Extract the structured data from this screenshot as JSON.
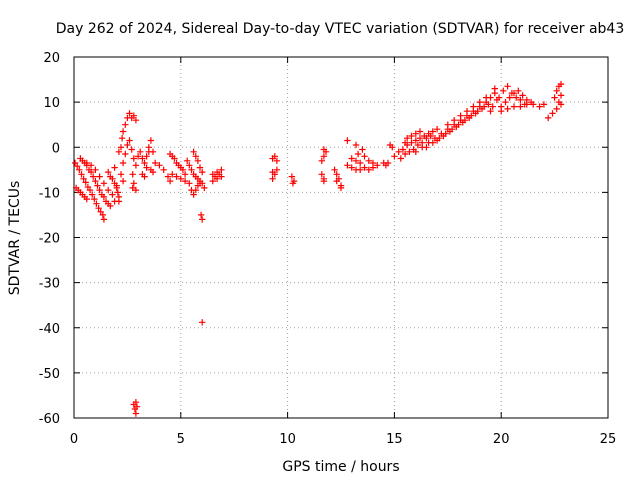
{
  "chart_data": {
    "type": "scatter",
    "title": "Day 262 of 2024, Sidereal Day-to-day VTEC variation (SDTVAR) for receiver ab43",
    "xlabel": "GPS time / hours",
    "ylabel": "SDTVAR / TECUs",
    "xlim": [
      0,
      25
    ],
    "ylim": [
      -60,
      20
    ],
    "xticks": [
      "0",
      "5",
      "10",
      "15",
      "20",
      "25"
    ],
    "yticks": [
      "20",
      "10",
      "0",
      "-10",
      "-20",
      "-30",
      "-40",
      "-50",
      "-60"
    ],
    "grid": true,
    "marker": "+",
    "color": "#ff0000",
    "series": [
      {
        "name": "SDTVAR",
        "points": [
          [
            0.05,
            -3.5
          ],
          [
            0.15,
            -4.2
          ],
          [
            0.25,
            -5.0
          ],
          [
            0.35,
            -6.0
          ],
          [
            0.45,
            -7.0
          ],
          [
            0.55,
            -7.8
          ],
          [
            0.65,
            -8.8
          ],
          [
            0.75,
            -9.5
          ],
          [
            0.85,
            -10.5
          ],
          [
            0.95,
            -11.5
          ],
          [
            1.05,
            -12.5
          ],
          [
            1.15,
            -13.5
          ],
          [
            1.25,
            -14.3
          ],
          [
            1.35,
            -15.0
          ],
          [
            1.4,
            -16.0
          ],
          [
            0.1,
            -9.0
          ],
          [
            0.2,
            -9.5
          ],
          [
            0.3,
            -10.0
          ],
          [
            0.4,
            -10.5
          ],
          [
            0.5,
            -11.0
          ],
          [
            0.6,
            -11.5
          ],
          [
            0.3,
            -2.5
          ],
          [
            0.4,
            -3.0
          ],
          [
            0.5,
            -3.5
          ],
          [
            0.6,
            -4.0
          ],
          [
            0.7,
            -5.0
          ],
          [
            0.8,
            -5.5
          ],
          [
            0.9,
            -6.5
          ],
          [
            1.0,
            -7.5
          ],
          [
            1.1,
            -8.5
          ],
          [
            1.2,
            -9.5
          ],
          [
            1.3,
            -10.5
          ],
          [
            1.4,
            -11.0
          ],
          [
            1.5,
            -12.0
          ],
          [
            1.6,
            -12.5
          ],
          [
            1.7,
            -13.0
          ],
          [
            0.6,
            -3.5
          ],
          [
            0.8,
            -4.0
          ],
          [
            1.0,
            -5.0
          ],
          [
            1.2,
            -6.5
          ],
          [
            1.4,
            -8.0
          ],
          [
            1.6,
            -9.5
          ],
          [
            1.8,
            -10.5
          ],
          [
            1.9,
            -12.0
          ],
          [
            1.6,
            -5.5
          ],
          [
            1.7,
            -6.5
          ],
          [
            1.8,
            -7.0
          ],
          [
            1.9,
            -8.0
          ],
          [
            2.0,
            -9.0
          ],
          [
            2.1,
            -11.0
          ],
          [
            2.1,
            -12.0
          ],
          [
            2.05,
            -10.0
          ],
          [
            2.0,
            -8.5
          ],
          [
            1.9,
            -4.5
          ],
          [
            2.2,
            -6.0
          ],
          [
            2.3,
            -7.5
          ],
          [
            2.1,
            -1.0
          ],
          [
            2.2,
            0.0
          ],
          [
            2.25,
            2.0
          ],
          [
            2.3,
            3.5
          ],
          [
            2.4,
            5.0
          ],
          [
            2.5,
            6.5
          ],
          [
            2.6,
            7.5
          ],
          [
            2.7,
            6.5
          ],
          [
            2.8,
            7.0
          ],
          [
            2.9,
            6.0
          ],
          [
            2.3,
            -3.5
          ],
          [
            2.4,
            -1.5
          ],
          [
            2.5,
            0.5
          ],
          [
            2.6,
            1.5
          ],
          [
            2.7,
            -0.5
          ],
          [
            2.8,
            -2.5
          ],
          [
            2.9,
            -4.0
          ],
          [
            2.75,
            -6.0
          ],
          [
            2.8,
            -8.0
          ],
          [
            2.75,
            -9.0
          ],
          [
            2.9,
            -9.5
          ],
          [
            3.0,
            -2.0
          ],
          [
            3.1,
            -1.0
          ],
          [
            3.2,
            -2.5
          ],
          [
            3.3,
            -3.5
          ],
          [
            3.4,
            -2.0
          ],
          [
            3.5,
            -1.0
          ],
          [
            3.6,
            1.5
          ],
          [
            3.5,
            0.0
          ],
          [
            3.4,
            -4.5
          ],
          [
            3.2,
            -6.0
          ],
          [
            3.3,
            -6.5
          ],
          [
            3.6,
            -5.0
          ],
          [
            3.7,
            -5.5
          ],
          [
            2.8,
            -57.0
          ],
          [
            2.9,
            -56.5
          ],
          [
            2.85,
            -58.0
          ],
          [
            2.95,
            -57.5
          ],
          [
            2.9,
            -59.0
          ],
          [
            3.7,
            -1.0
          ],
          [
            3.8,
            -3.5
          ],
          [
            4.0,
            -4.0
          ],
          [
            4.2,
            -5.0
          ],
          [
            4.4,
            -6.5
          ],
          [
            4.5,
            -7.5
          ],
          [
            4.6,
            -6.0
          ],
          [
            4.5,
            -1.5
          ],
          [
            4.6,
            -2.0
          ],
          [
            4.7,
            -2.5
          ],
          [
            4.8,
            -3.5
          ],
          [
            4.9,
            -4.0
          ],
          [
            5.0,
            -4.5
          ],
          [
            5.1,
            -5.0
          ],
          [
            5.2,
            -6.0
          ],
          [
            4.8,
            -6.5
          ],
          [
            5.0,
            -7.0
          ],
          [
            5.2,
            -7.5
          ],
          [
            5.4,
            -8.0
          ],
          [
            5.5,
            -9.5
          ],
          [
            5.6,
            -10.5
          ],
          [
            5.7,
            -9.5
          ],
          [
            5.8,
            -8.5
          ],
          [
            5.9,
            -8.0
          ],
          [
            5.3,
            -3.0
          ],
          [
            5.4,
            -4.0
          ],
          [
            5.5,
            -5.0
          ],
          [
            5.6,
            -6.0
          ],
          [
            5.7,
            -6.5
          ],
          [
            5.8,
            -7.0
          ],
          [
            5.9,
            -7.5
          ],
          [
            6.0,
            -8.0
          ],
          [
            6.1,
            -9.0
          ],
          [
            5.6,
            -1.0
          ],
          [
            5.7,
            -2.0
          ],
          [
            5.8,
            -3.0
          ],
          [
            5.9,
            -4.5
          ],
          [
            6.0,
            -5.5
          ],
          [
            5.95,
            -15.0
          ],
          [
            6.0,
            -16.0
          ],
          [
            6.0,
            -38.8
          ],
          [
            6.5,
            -6.0
          ],
          [
            6.7,
            -5.5
          ],
          [
            6.9,
            -5.0
          ],
          [
            6.5,
            -7.5
          ],
          [
            6.7,
            -7.0
          ],
          [
            6.9,
            -6.5
          ],
          [
            6.6,
            -6.5
          ],
          [
            6.8,
            -6.0
          ],
          [
            9.3,
            -2.5
          ],
          [
            9.4,
            -2.0
          ],
          [
            9.5,
            -3.0
          ],
          [
            9.3,
            -5.5
          ],
          [
            9.4,
            -6.0
          ],
          [
            9.3,
            -7.0
          ],
          [
            9.5,
            -5.0
          ],
          [
            10.2,
            -6.5
          ],
          [
            10.3,
            -7.5
          ],
          [
            10.25,
            -8.0
          ],
          [
            11.6,
            -3.0
          ],
          [
            11.7,
            -2.0
          ],
          [
            11.8,
            -1.0
          ],
          [
            11.7,
            -0.5
          ],
          [
            11.6,
            -6.0
          ],
          [
            11.7,
            -7.0
          ],
          [
            11.7,
            -7.5
          ],
          [
            12.2,
            -5.0
          ],
          [
            12.3,
            -6.0
          ],
          [
            12.4,
            -7.0
          ],
          [
            12.5,
            -8.5
          ],
          [
            12.5,
            -9.0
          ],
          [
            12.3,
            -7.5
          ],
          [
            12.8,
            1.5
          ],
          [
            13.2,
            0.5
          ],
          [
            12.8,
            -4.0
          ],
          [
            13.0,
            -4.5
          ],
          [
            13.2,
            -5.0
          ],
          [
            13.4,
            -5.0
          ],
          [
            13.6,
            -4.5
          ],
          [
            13.8,
            -5.0
          ],
          [
            14.0,
            -4.5
          ],
          [
            14.2,
            -4.0
          ],
          [
            13.0,
            -2.5
          ],
          [
            13.2,
            -3.0
          ],
          [
            13.4,
            -3.5
          ],
          [
            13.6,
            -2.0
          ],
          [
            13.8,
            -3.0
          ],
          [
            14.0,
            -3.5
          ],
          [
            13.3,
            -1.5
          ],
          [
            13.5,
            -0.5
          ],
          [
            14.6,
            -4.0
          ],
          [
            14.7,
            -3.5
          ],
          [
            14.5,
            -3.5
          ],
          [
            14.8,
            0.5
          ],
          [
            14.9,
            0.0
          ],
          [
            15.0,
            -2.0
          ],
          [
            15.2,
            -1.0
          ],
          [
            15.4,
            -0.5
          ],
          [
            15.6,
            0.5
          ],
          [
            15.8,
            1.0
          ],
          [
            16.0,
            1.5
          ],
          [
            16.2,
            2.0
          ],
          [
            16.4,
            2.5
          ],
          [
            16.6,
            3.0
          ],
          [
            16.8,
            3.5
          ],
          [
            17.0,
            4.0
          ],
          [
            15.3,
            -2.5
          ],
          [
            15.5,
            -1.5
          ],
          [
            15.7,
            -1.0
          ],
          [
            15.9,
            -0.5
          ],
          [
            16.1,
            0.5
          ],
          [
            16.3,
            1.0
          ],
          [
            16.5,
            2.0
          ],
          [
            16.7,
            2.5
          ],
          [
            15.5,
            1.0
          ],
          [
            15.6,
            2.0
          ],
          [
            15.8,
            2.5
          ],
          [
            16.0,
            3.0
          ],
          [
            16.2,
            3.5
          ],
          [
            16.0,
            -1.0
          ],
          [
            16.3,
            0.0
          ],
          [
            16.6,
            1.0
          ],
          [
            16.9,
            2.0
          ],
          [
            17.2,
            3.0
          ],
          [
            17.5,
            4.0
          ],
          [
            17.8,
            5.0
          ],
          [
            18.1,
            6.0
          ],
          [
            18.4,
            7.0
          ],
          [
            18.7,
            8.0
          ],
          [
            19.0,
            9.0
          ],
          [
            19.3,
            10.0
          ],
          [
            19.5,
            11.0
          ],
          [
            19.7,
            12.0
          ],
          [
            16.5,
            0.0
          ],
          [
            16.8,
            1.0
          ],
          [
            17.1,
            2.0
          ],
          [
            17.4,
            3.0
          ],
          [
            17.7,
            4.0
          ],
          [
            18.0,
            5.0
          ],
          [
            18.3,
            6.0
          ],
          [
            18.6,
            7.0
          ],
          [
            18.9,
            8.0
          ],
          [
            19.2,
            9.0
          ],
          [
            17.0,
            1.5
          ],
          [
            17.3,
            2.5
          ],
          [
            17.6,
            3.5
          ],
          [
            17.9,
            4.5
          ],
          [
            18.2,
            5.5
          ],
          [
            18.5,
            6.5
          ],
          [
            18.8,
            7.5
          ],
          [
            19.1,
            8.5
          ],
          [
            19.4,
            9.5
          ],
          [
            17.5,
            5.0
          ],
          [
            17.8,
            6.0
          ],
          [
            18.1,
            7.0
          ],
          [
            18.4,
            8.0
          ],
          [
            18.7,
            9.0
          ],
          [
            19.0,
            10.0
          ],
          [
            19.3,
            11.0
          ],
          [
            19.5,
            8.0
          ],
          [
            19.6,
            9.0
          ],
          [
            19.8,
            10.5
          ],
          [
            19.7,
            13.0
          ],
          [
            20.0,
            9.0
          ],
          [
            20.2,
            10.0
          ],
          [
            20.4,
            11.0
          ],
          [
            20.6,
            12.0
          ],
          [
            20.8,
            12.5
          ],
          [
            21.0,
            11.5
          ],
          [
            21.2,
            10.5
          ],
          [
            21.4,
            10.0
          ],
          [
            19.9,
            11.0
          ],
          [
            20.1,
            12.5
          ],
          [
            20.3,
            13.5
          ],
          [
            20.5,
            12.0
          ],
          [
            20.7,
            11.0
          ],
          [
            20.9,
            10.5
          ],
          [
            21.1,
            9.5
          ],
          [
            20.0,
            8.0
          ],
          [
            20.3,
            8.5
          ],
          [
            20.6,
            9.0
          ],
          [
            20.9,
            9.0
          ],
          [
            21.2,
            9.5
          ],
          [
            21.5,
            9.5
          ],
          [
            21.8,
            9.0
          ],
          [
            22.0,
            9.5
          ],
          [
            22.2,
            6.5
          ],
          [
            22.4,
            7.5
          ],
          [
            22.6,
            8.5
          ],
          [
            22.8,
            9.5
          ],
          [
            22.5,
            11.0
          ],
          [
            22.6,
            12.5
          ],
          [
            22.7,
            13.5
          ],
          [
            22.8,
            14.0
          ],
          [
            22.7,
            10.0
          ],
          [
            22.8,
            11.5
          ]
        ]
      }
    ]
  }
}
